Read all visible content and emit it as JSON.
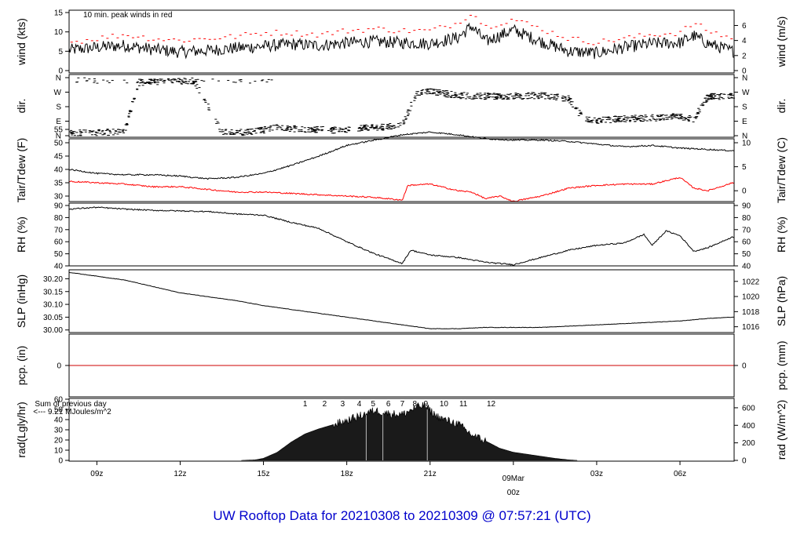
{
  "footer": {
    "title": "UW Rooftop Data for 20210308  to  20210309 @ 07:57:21  (UTC)"
  },
  "colors": {
    "data": "#000000",
    "peak": "#ff0000",
    "dew": "#ff0000",
    "pcp": "#cc0000",
    "annot": "#9933cc",
    "footer": "#0000cc",
    "date": "#cc0000"
  },
  "x_axis": {
    "start_hour_utc": 8.0,
    "end_hour_utc": 31.95,
    "tick_labels": [
      "09z",
      "12z",
      "15z",
      "18z",
      "21z",
      "03z",
      "06z"
    ],
    "tick_hours": [
      9,
      12,
      15,
      18,
      21,
      27,
      30
    ],
    "date_label": {
      "hour": 24,
      "line1": "09Mar",
      "line2": "00z"
    }
  },
  "chart_data": [
    {
      "id": "wind",
      "type": "line",
      "left_label": "wind (kts)",
      "right_label": "wind (m/s)",
      "left_ylim": [
        0,
        15
      ],
      "left_ticks": [
        0,
        5,
        10,
        15
      ],
      "right_ticks": [
        {
          "v": 0,
          "l": "0"
        },
        {
          "v": 3.89,
          "l": "2"
        },
        {
          "v": 7.78,
          "l": "4"
        },
        {
          "v": 11.66,
          "l": "6"
        }
      ],
      "annotation": "10 min. peak winds in red",
      "series_x_hours": [
        8,
        9,
        10,
        11,
        12,
        13,
        14,
        15,
        16,
        17,
        18,
        19,
        20,
        21,
        22,
        22.5,
        23,
        24,
        25,
        26,
        27,
        28,
        29,
        30,
        30.5,
        31,
        31.9
      ],
      "mean_speed_kts": [
        5.3,
        6.0,
        6.5,
        5.5,
        4.8,
        5.2,
        5.8,
        6.3,
        6.8,
        6.5,
        7.2,
        7.5,
        7.2,
        7.0,
        8.5,
        11.5,
        7.5,
        10.5,
        7.5,
        5.0,
        4.5,
        6.0,
        7.0,
        7.2,
        9.0,
        7.0,
        5.0
      ],
      "peak_speed_kts": [
        7.0,
        8.0,
        9.0,
        8.0,
        7.5,
        8.0,
        8.5,
        9.5,
        9.5,
        9.0,
        10.0,
        10.5,
        10.0,
        10.0,
        12.0,
        14.8,
        11.0,
        13.0,
        10.5,
        8.0,
        7.0,
        8.0,
        9.0,
        9.5,
        12.0,
        10.0,
        8.0
      ]
    },
    {
      "id": "dir",
      "type": "scatter",
      "left_label": "dir.",
      "right_label": "dir.",
      "tick_labels": [
        "N",
        "W",
        "S",
        "E",
        "N"
      ],
      "note": "wind direction in degrees; N at top and bottom",
      "series_x_hours": [
        8,
        9,
        10,
        10.5,
        11.5,
        12.5,
        13.5,
        14.5,
        15.5,
        16.5,
        17.5,
        18.5,
        19.5,
        20,
        20.5,
        21,
        22,
        23,
        24,
        25,
        26,
        26.5,
        27,
        28,
        29,
        30,
        30.5,
        31,
        31.9
      ],
      "direction_deg": [
        15,
        20,
        25,
        330,
        335,
        340,
        25,
        20,
        50,
        40,
        35,
        45,
        55,
        60,
        260,
        275,
        250,
        245,
        245,
        250,
        230,
        110,
        95,
        105,
        110,
        120,
        105,
        240,
        250
      ]
    },
    {
      "id": "temp",
      "type": "line",
      "left_label": "Tair/Tdew (F)",
      "right_label": "Tair/Tdew (C)",
      "left_ylim": [
        25,
        55
      ],
      "left_ticks": [
        30,
        35,
        40,
        45,
        50,
        55
      ],
      "right_ticks": [
        {
          "v": 32,
          "l": "0"
        },
        {
          "v": 41,
          "l": "5"
        },
        {
          "v": 50,
          "l": "10"
        }
      ],
      "series": [
        {
          "name": "Tair",
          "x_hours": [
            8,
            9,
            10,
            11,
            12,
            13,
            14,
            15,
            16,
            17,
            18,
            19,
            20,
            21,
            22,
            23,
            24,
            25,
            26,
            27,
            28,
            29,
            30,
            31,
            31.9
          ],
          "values": [
            40,
            38.5,
            38,
            38,
            37.5,
            36.5,
            37,
            38.5,
            41.5,
            45,
            49,
            51,
            53,
            54,
            53,
            51.5,
            51,
            51,
            50.5,
            49.5,
            48.5,
            49,
            48,
            47.5,
            47
          ]
        },
        {
          "name": "Tdew",
          "x_hours": [
            8,
            9,
            10,
            11,
            12,
            13,
            14,
            15,
            16,
            17,
            18,
            19,
            20,
            20.2,
            21,
            22,
            22.5,
            23,
            23.5,
            24,
            25,
            26,
            27,
            28,
            29,
            30,
            30.5,
            31,
            31.9
          ],
          "values": [
            35.5,
            35,
            34.5,
            33.5,
            33.5,
            32.5,
            31.5,
            31.5,
            31,
            30.5,
            30,
            29.5,
            28.5,
            34,
            34.5,
            32,
            31.5,
            29,
            30,
            28,
            30,
            33,
            34,
            34.5,
            34.5,
            37,
            33,
            32,
            35
          ]
        }
      ]
    },
    {
      "id": "rh",
      "type": "line",
      "left_label": "RH (%)",
      "right_label": "RH (%)",
      "left_ylim": [
        40,
        90
      ],
      "left_ticks": [
        40,
        50,
        60,
        70,
        80,
        90
      ],
      "right_ticks": [
        {
          "v": 40,
          "l": "40"
        },
        {
          "v": 50,
          "l": "50"
        },
        {
          "v": 60,
          "l": "60"
        },
        {
          "v": 70,
          "l": "70"
        },
        {
          "v": 80,
          "l": "80"
        },
        {
          "v": 90,
          "l": "90"
        }
      ],
      "x_hours": [
        8,
        9,
        10,
        11,
        12,
        13,
        14,
        15,
        16,
        17,
        18,
        19,
        20,
        20.3,
        21,
        22,
        23,
        24,
        25,
        26,
        27,
        28,
        28.7,
        29,
        29.5,
        30,
        30.5,
        31,
        31.9
      ],
      "values": [
        87,
        88.5,
        87,
        86,
        85.5,
        85,
        83,
        82,
        76,
        71,
        60,
        50,
        42,
        53,
        49,
        47,
        43,
        41,
        47,
        53,
        57,
        59,
        66,
        57,
        69,
        65,
        52,
        55,
        64
      ]
    },
    {
      "id": "slp",
      "type": "line",
      "left_label": "SLP (inHg)",
      "right_label": "SLP (hPa)",
      "left_ylim": [
        29.99,
        30.235
      ],
      "left_ticks": [
        30.0,
        30.05,
        30.1,
        30.15,
        30.2
      ],
      "left_tick_labels": [
        "30.00",
        "30.05",
        "30.10",
        "30.15",
        "30.20"
      ],
      "right_ticks": [
        {
          "v": 30.0126,
          "l": "1016"
        },
        {
          "v": 30.0716,
          "l": "1018"
        },
        {
          "v": 30.1307,
          "l": "1020"
        },
        {
          "v": 30.1898,
          "l": "1022"
        }
      ],
      "x_hours": [
        8,
        9,
        10,
        11,
        12,
        13,
        14,
        15,
        16,
        17,
        18,
        19,
        20,
        21,
        22,
        23,
        24,
        25,
        26,
        27,
        28,
        29,
        30,
        31,
        31.9
      ],
      "values": [
        30.225,
        30.21,
        30.195,
        30.17,
        30.145,
        30.13,
        30.115,
        30.095,
        30.08,
        30.065,
        30.05,
        30.035,
        30.02,
        30.005,
        30.005,
        30.01,
        30.01,
        30.01,
        30.015,
        30.02,
        30.025,
        30.03,
        30.035,
        30.045,
        30.05
      ]
    },
    {
      "id": "pcp",
      "type": "line",
      "left_label": "pcp. (in)",
      "right_label": "pcp. (mm)",
      "left_ticks": [
        0
      ],
      "right_ticks": [
        {
          "v": 0,
          "l": "0"
        }
      ],
      "x_hours": [
        8,
        31.95
      ],
      "values": [
        0,
        0
      ]
    },
    {
      "id": "rad",
      "type": "area",
      "left_label": "rad(Lgly/hr)",
      "right_label": "rad (W/m^2)",
      "left_ylim": [
        0,
        60
      ],
      "left_ticks": [
        0,
        10,
        20,
        30,
        40,
        50,
        60
      ],
      "right_ticks": [
        {
          "v": 0,
          "l": "0"
        },
        {
          "v": 17.2,
          "l": "200"
        },
        {
          "v": 34.4,
          "l": "400"
        },
        {
          "v": 51.6,
          "l": "600"
        }
      ],
      "annotation_line1": "Sum of previous day",
      "annotation_line2": "<--- 9.21 MJoules/m^2",
      "hour_markers": [
        "1",
        "2",
        "3",
        "4",
        "5",
        "6",
        "7",
        "8",
        "9",
        "10",
        "11",
        "12"
      ],
      "hour_marker_x": [
        16.5,
        17.2,
        17.85,
        18.45,
        18.95,
        19.5,
        20.0,
        20.45,
        20.85,
        21.5,
        22.2,
        23.2
      ],
      "x_hours": [
        14.2,
        14.7,
        15.0,
        15.5,
        16.0,
        16.5,
        17.0,
        17.5,
        18.0,
        18.5,
        19.0,
        19.5,
        20.0,
        20.5,
        20.8,
        21.2,
        21.5,
        22.0,
        22.5,
        23.0,
        23.5,
        24.0,
        24.5,
        25.0,
        25.5,
        26.0,
        26.3
      ],
      "values": [
        0,
        0.5,
        2,
        8,
        18,
        26,
        31,
        35,
        39,
        44,
        49,
        46,
        45,
        52,
        54,
        44,
        40,
        36,
        25,
        19,
        12,
        8,
        6,
        4,
        2,
        0.5,
        0
      ]
    }
  ]
}
